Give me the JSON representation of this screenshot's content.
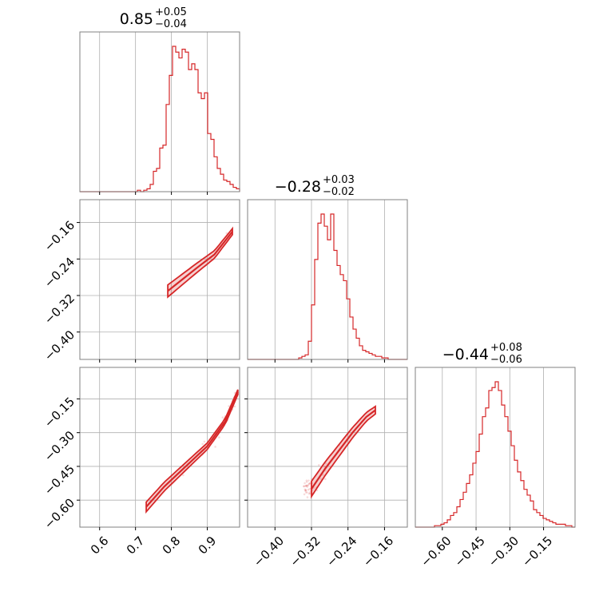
{
  "chart_data": {
    "type": "corner",
    "color": "#d62728",
    "grid": true,
    "parameters": [
      {
        "title": {
          "median": "0.85",
          "plus": "+0.05",
          "minus": "−0.04"
        },
        "range": [
          0.545,
          0.99
        ],
        "ticks": [
          0.6,
          0.7,
          0.8,
          0.9
        ],
        "tick_labels": [
          "0.6",
          "0.7",
          "0.8",
          "0.9"
        ],
        "histogram": [
          0,
          0,
          0,
          0,
          0,
          0,
          0,
          0,
          0,
          0,
          0,
          0,
          0,
          0,
          0,
          0,
          0,
          0,
          1,
          0,
          1,
          2,
          5,
          14,
          16,
          30,
          32,
          60,
          80,
          100,
          96,
          92,
          98,
          96,
          84,
          88,
          84,
          68,
          64,
          68,
          40,
          36,
          24,
          16,
          12,
          8,
          7,
          5,
          3,
          2
        ]
      },
      {
        "title": {
          "median": "−0.28",
          "plus": "+0.03",
          "minus": "−0.02"
        },
        "range": [
          -0.46,
          -0.11
        ],
        "ticks": [
          -0.4,
          -0.32,
          -0.24,
          -0.16
        ],
        "tick_labels": [
          "−0.40",
          "−0.32",
          "−0.24",
          "−0.16"
        ],
        "histogram": [
          0,
          0,
          0,
          0,
          0,
          0,
          0,
          0,
          0,
          0,
          0,
          0,
          0,
          0,
          0,
          0,
          1,
          2,
          3,
          12,
          36,
          66,
          90,
          96,
          88,
          79,
          96,
          72,
          62,
          56,
          52,
          40,
          28,
          20,
          14,
          9,
          6,
          5,
          4,
          3,
          2,
          2,
          1,
          1,
          0,
          0,
          0,
          0,
          0,
          0
        ]
      },
      {
        "title": {
          "median": "−0.44",
          "plus": "+0.08",
          "minus": "−0.06"
        },
        "range": [
          -0.72,
          -0.01
        ],
        "ticks": [
          -0.6,
          -0.45,
          -0.3,
          -0.15
        ],
        "tick_labels": [
          "−0.60",
          "−0.45",
          "−0.30",
          "−0.15"
        ],
        "histogram": [
          0,
          0,
          0,
          0,
          0,
          0,
          1,
          1,
          2,
          3,
          5,
          8,
          10,
          14,
          19,
          24,
          30,
          36,
          44,
          52,
          64,
          76,
          82,
          94,
          96,
          100,
          94,
          84,
          76,
          66,
          56,
          46,
          38,
          32,
          26,
          22,
          18,
          12,
          10,
          8,
          6,
          5,
          4,
          3,
          2,
          2,
          2,
          1,
          1,
          0
        ]
      }
    ],
    "pair_trends": [
      {
        "x": 1,
        "y": 0,
        "points": [
          [
            0.79,
            -0.31
          ],
          [
            0.83,
            -0.285
          ],
          [
            0.87,
            -0.26
          ],
          [
            0.92,
            -0.23
          ],
          [
            0.97,
            -0.18
          ]
        ],
        "spread": 0.011
      },
      {
        "x": 2,
        "y": 0,
        "points": [
          [
            0.73,
            -0.63
          ],
          [
            0.78,
            -0.54
          ],
          [
            0.84,
            -0.45
          ],
          [
            0.9,
            -0.36
          ],
          [
            0.95,
            -0.25
          ],
          [
            0.985,
            -0.12
          ]
        ],
        "spread": 0.018
      },
      {
        "x": 2,
        "y": 1,
        "points": [
          [
            -0.32,
            -0.55
          ],
          [
            -0.29,
            -0.46
          ],
          [
            -0.26,
            -0.38
          ],
          [
            -0.23,
            -0.3
          ],
          [
            -0.2,
            -0.23
          ],
          [
            -0.18,
            -0.2
          ]
        ],
        "spread": 0.028
      }
    ]
  }
}
